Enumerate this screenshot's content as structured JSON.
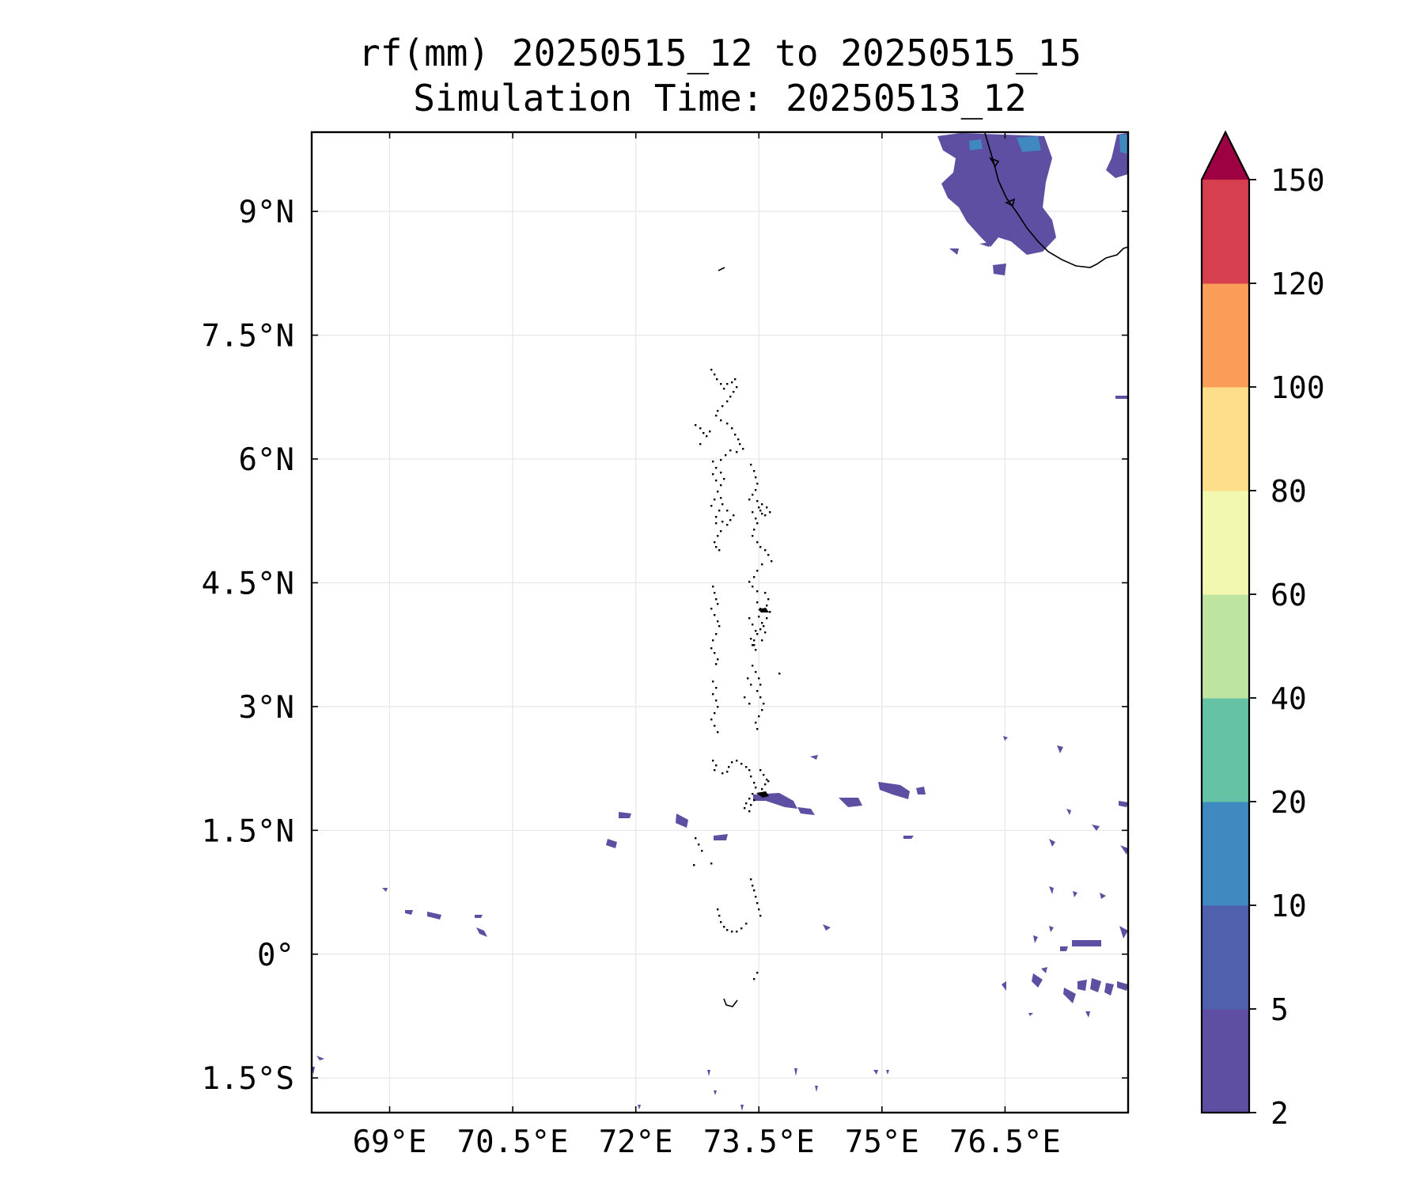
{
  "title": {
    "line1": "rf(mm) 20250515_12 to 20250515_15",
    "line2": "Simulation Time: 20250513_12"
  },
  "map": {
    "lon_range": [
      68.05,
      78.0
    ],
    "lat_range": [
      -1.92,
      9.96
    ],
    "lon_ticks": [
      69,
      70.5,
      72,
      73.5,
      75,
      76.5
    ],
    "lon_labels": [
      "69°E",
      "70.5°E",
      "72°E",
      "73.5°E",
      "75°E",
      "76.5°E"
    ],
    "lat_ticks": [
      9,
      7.5,
      6,
      4.5,
      3,
      1.5,
      0,
      -1.5
    ],
    "lat_labels": [
      "9°N",
      "7.5°N",
      "6°N",
      "4.5°N",
      "3°N",
      "1.5°N",
      "0°",
      "1.5°S"
    ],
    "grid": true,
    "coastline_color": "#000000",
    "gridline_color": "#e6e6e6"
  },
  "colorbar": {
    "levels": [
      2,
      5,
      10,
      20,
      40,
      60,
      80,
      100,
      120,
      150
    ],
    "labels": [
      "2",
      "5",
      "10",
      "20",
      "40",
      "60",
      "80",
      "100",
      "120",
      "150"
    ],
    "colors": [
      "#5e4fa2",
      "#5060ad",
      "#3f88c0",
      "#66c2a5",
      "#bee5a0",
      "#f2f8b0",
      "#fddf8b",
      "#f99d59",
      "#d6404e"
    ],
    "extend_color": "#9e0142",
    "extend": "max"
  }
}
